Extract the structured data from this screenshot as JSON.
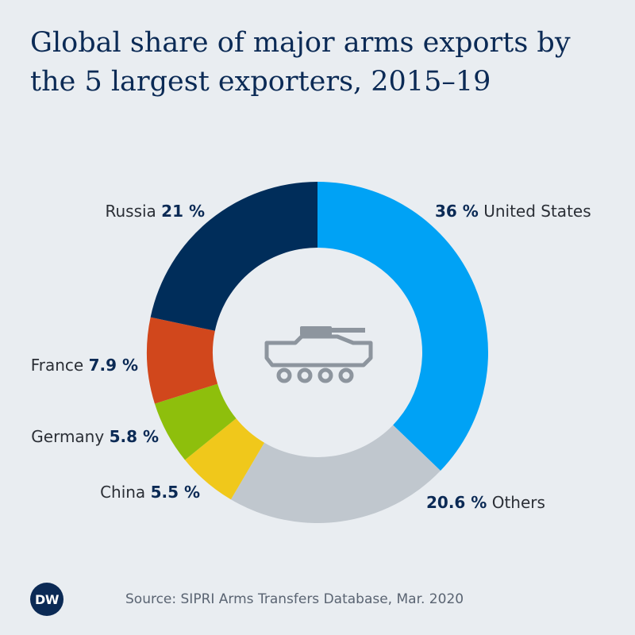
{
  "title": "Global share of major arms exports by the 5 largest exporters, 2015–19",
  "source": "Source: SIPRI Arms Transfers Database, Mar. 2020",
  "logo_text": "DW",
  "center_icon": "armored-vehicle-icon",
  "chart_data": {
    "type": "pie",
    "style": "donut",
    "title": "Global share of major arms exports by the 5 largest exporters, 2015–19",
    "slices": [
      {
        "name": "United States",
        "value": 36,
        "label_value": "36 %",
        "color": "#00a2f5",
        "label_side": "right"
      },
      {
        "name": "Others",
        "value": 20.6,
        "label_value": "20.6 %",
        "color": "#c0c7ce",
        "label_side": "right"
      },
      {
        "name": "China",
        "value": 5.5,
        "label_value": "5.5 %",
        "color": "#f0c81b",
        "label_side": "left"
      },
      {
        "name": "Germany",
        "value": 5.8,
        "label_value": "5.8 %",
        "color": "#8ebf0c",
        "label_side": "left"
      },
      {
        "name": "France",
        "value": 7.9,
        "label_value": "7.9 %",
        "color": "#d1471c",
        "label_side": "left"
      },
      {
        "name": "Russia",
        "value": 21,
        "label_value": "21 %",
        "color": "#002d5a",
        "label_side": "left"
      }
    ]
  }
}
